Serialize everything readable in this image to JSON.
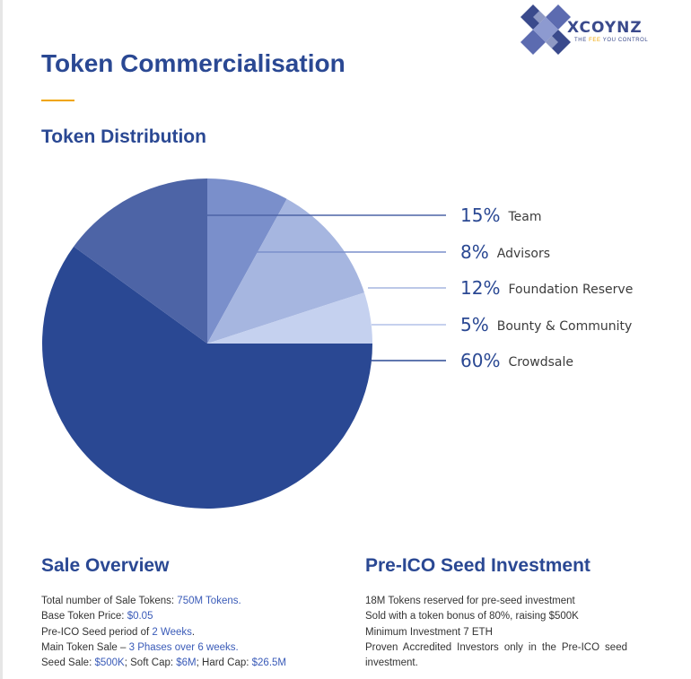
{
  "brand": {
    "name": "XCOYNZ",
    "tagline_pre": "THE",
    "tagline_hl": "FEE",
    "tagline_post": "YOU CONTROL"
  },
  "page": {
    "title": "Token Commercialisation",
    "accent_color": "#f0a500",
    "heading_color": "#2a4893"
  },
  "distribution": {
    "title": "Token Distribution"
  },
  "chart_data": {
    "type": "pie",
    "title": "",
    "slices": [
      {
        "label": "Team",
        "value": 15,
        "display": "15%",
        "color": "#4d64a6"
      },
      {
        "label": "Advisors",
        "value": 8,
        "display": "8%",
        "color": "#7a8fcb"
      },
      {
        "label": "Foundation Reserve",
        "value": 12,
        "display": "12%",
        "color": "#a6b6e0"
      },
      {
        "label": "Bounty & Community",
        "value": 5,
        "display": "5%",
        "color": "#c5d1ef"
      },
      {
        "label": "Crowdsale",
        "value": 60,
        "display": "60%",
        "color": "#2a4893"
      }
    ],
    "legend_placement": "right"
  },
  "sale_overview": {
    "title": "Sale Overview",
    "lines": [
      [
        {
          "t": "Total number of Sale Tokens: "
        },
        {
          "t": "750M Tokens.",
          "accent": true
        }
      ],
      [
        {
          "t": "Base Token Price: "
        },
        {
          "t": "$0.05",
          "accent": true
        }
      ],
      [
        {
          "t": "Pre-ICO Seed period of "
        },
        {
          "t": "2 Weeks",
          "accent": true
        },
        {
          "t": "."
        }
      ],
      [
        {
          "t": "Main Token Sale – "
        },
        {
          "t": "3 Phases over 6 weeks.",
          "accent": true
        }
      ],
      [
        {
          "t": "Seed Sale: "
        },
        {
          "t": "$500K",
          "accent": true
        },
        {
          "t": "; Soft Cap: "
        },
        {
          "t": "$6M",
          "accent": true
        },
        {
          "t": "; Hard Cap: "
        },
        {
          "t": "$26.5M",
          "accent": true
        }
      ]
    ]
  },
  "pre_ico": {
    "title": "Pre-ICO Seed Investment",
    "lines": [
      "18M Tokens reserved for pre-seed investment",
      "Sold with a token bonus of 80%, raising $500K",
      "Minimum Investment 7 ETH",
      "Proven Accredited Investors only in the Pre-ICO seed investment."
    ]
  }
}
